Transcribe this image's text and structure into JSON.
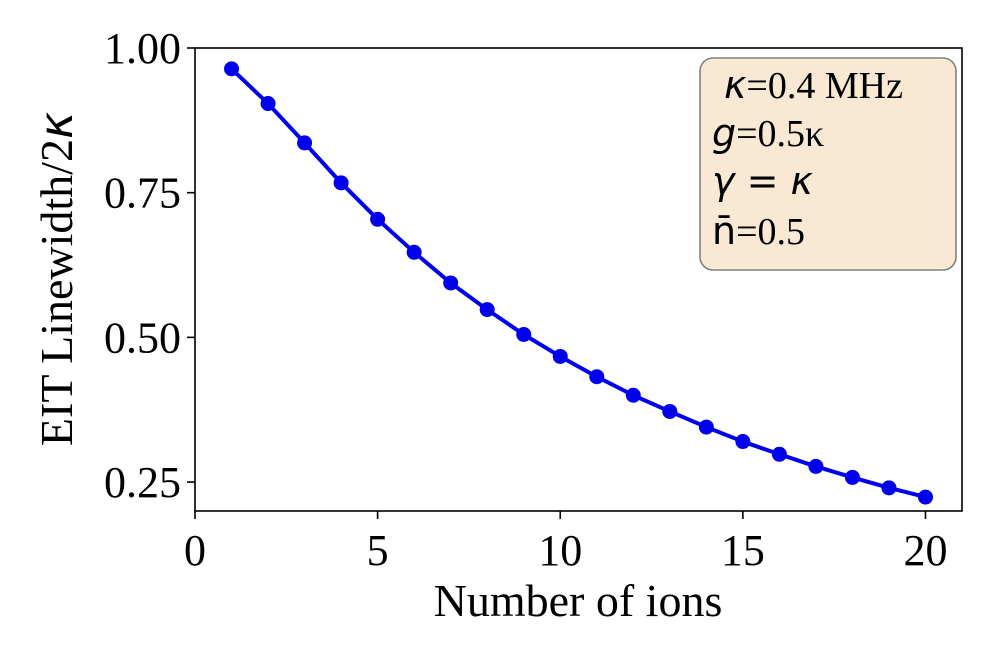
{
  "chart_data": {
    "type": "line",
    "title": "",
    "xlabel": "Number of ions",
    "ylabel_main": "EIT Linewidth/2",
    "ylabel_symbol": "κ",
    "xlim": [
      0,
      21
    ],
    "ylim": [
      0.2,
      1.0
    ],
    "x_ticks": [
      0,
      5,
      10,
      15,
      20
    ],
    "x_tick_labels": [
      "0",
      "5",
      "10",
      "15",
      "20"
    ],
    "y_ticks": [
      0.25,
      0.5,
      0.75,
      1.0
    ],
    "y_tick_labels": [
      "0.25",
      "0.50",
      "0.75",
      "1.00"
    ],
    "grid": false,
    "series": [
      {
        "color": "#0000ee",
        "marker": "circle",
        "x": [
          1,
          2,
          3,
          4,
          5,
          6,
          7,
          8,
          9,
          10,
          11,
          12,
          13,
          14,
          15,
          16,
          17,
          18,
          19,
          20
        ],
        "y": [
          0.964,
          0.904,
          0.836,
          0.767,
          0.704,
          0.647,
          0.594,
          0.548,
          0.505,
          0.467,
          0.432,
          0.4,
          0.372,
          0.345,
          0.32,
          0.298,
          0.277,
          0.258,
          0.24,
          0.224
        ]
      }
    ],
    "annotation": {
      "placement": "top-right",
      "box_color": "#f9e9d4",
      "lines": [
        {
          "symbol": "κ",
          "text": "=0.4 MHz"
        },
        {
          "symbol": "g",
          "text": "=0.5κ"
        },
        {
          "symbol": "γ = κ",
          "text": ""
        },
        {
          "symbol": "n̄",
          "text": "=0.5"
        }
      ]
    }
  }
}
